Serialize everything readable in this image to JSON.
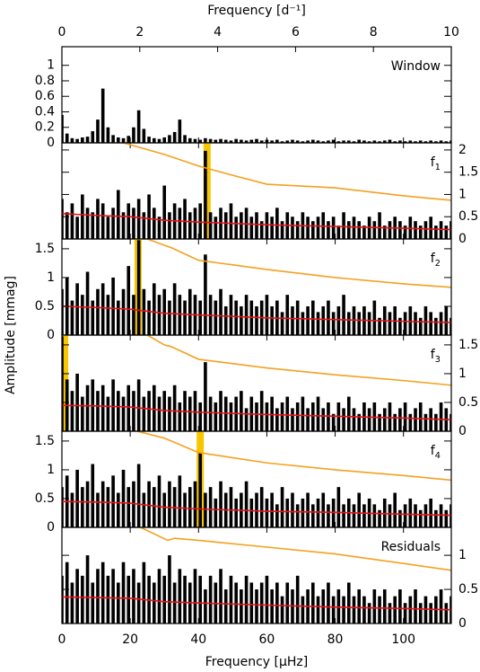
{
  "chart_data": {
    "type": "periodogram",
    "top_axis_label": "Frequency [d⁻¹]",
    "x_axis_label": "Frequency [μHz]",
    "y_axis_label": "Amplitude [mmag]",
    "xlim": [
      0,
      114
    ],
    "xticks": [
      0,
      20,
      40,
      60,
      80,
      100
    ],
    "top_xlim": [
      0,
      10
    ],
    "top_xticks": [
      0,
      2,
      4,
      6,
      8,
      10
    ],
    "x": [
      0,
      1.5,
      3,
      4.5,
      6,
      7.5,
      9,
      10.5,
      12,
      13.5,
      15,
      16.5,
      18,
      19.5,
      21,
      22.5,
      24,
      25.5,
      27,
      28.5,
      30,
      31.5,
      33,
      34.5,
      36,
      37.5,
      39,
      40.5,
      42,
      43.5,
      45,
      46.5,
      48,
      49.5,
      51,
      52.5,
      54,
      55.5,
      57,
      58.5,
      60,
      61.5,
      63,
      64.5,
      66,
      67.5,
      69,
      70.5,
      72,
      73.5,
      75,
      76.5,
      78,
      79.5,
      81,
      82.5,
      84,
      85.5,
      87,
      88.5,
      90,
      91.5,
      93,
      94.5,
      96,
      97.5,
      99,
      100.5,
      102,
      103.5,
      105,
      106.5,
      108,
      109.5,
      111,
      112.5,
      114
    ],
    "panels": [
      {
        "label": "Window",
        "ylim": [
          0,
          1.24
        ],
        "yticks": [
          0,
          0.2,
          0.4,
          0.6,
          0.8,
          1
        ],
        "ytick_side": "left",
        "color": "#000000",
        "values": [
          0.36,
          0.12,
          0.06,
          0.05,
          0.07,
          0.08,
          0.15,
          0.3,
          0.7,
          0.2,
          0.1,
          0.07,
          0.06,
          0.09,
          0.2,
          0.42,
          0.18,
          0.08,
          0.06,
          0.05,
          0.07,
          0.1,
          0.14,
          0.3,
          0.1,
          0.06,
          0.05,
          0.04,
          0.06,
          0.05,
          0.04,
          0.05,
          0.04,
          0.03,
          0.05,
          0.04,
          0.03,
          0.04,
          0.05,
          0.03,
          0.04,
          0.03,
          0.04,
          0.02,
          0.03,
          0.04,
          0.03,
          0.02,
          0.03,
          0.04,
          0.03,
          0.02,
          0.03,
          0.04,
          0.02,
          0.03,
          0.03,
          0.02,
          0.04,
          0.03,
          0.02,
          0.03,
          0.02,
          0.03,
          0.04,
          0.02,
          0.03,
          0.02,
          0.03,
          0.02,
          0.03,
          0.02,
          0.03,
          0.02,
          0.03,
          0.02,
          0.03
        ]
      },
      {
        "label": "f",
        "subscript": "1",
        "ylim": [
          0,
          2.16
        ],
        "yticks": [
          0,
          0.5,
          1,
          1.5,
          2
        ],
        "ytick_side": "right",
        "color": "#000000",
        "highlight": 42.5,
        "values": [
          0.9,
          0.6,
          0.8,
          0.5,
          1.0,
          0.7,
          0.6,
          0.9,
          0.8,
          0.5,
          0.7,
          1.1,
          0.6,
          0.8,
          0.7,
          0.9,
          0.6,
          1.0,
          0.7,
          0.5,
          1.2,
          0.6,
          0.8,
          0.7,
          0.9,
          0.6,
          0.7,
          0.8,
          1.98,
          0.6,
          0.5,
          0.7,
          0.6,
          0.8,
          0.5,
          0.6,
          0.7,
          0.5,
          0.6,
          0.4,
          0.6,
          0.5,
          0.7,
          0.4,
          0.6,
          0.5,
          0.4,
          0.6,
          0.5,
          0.4,
          0.5,
          0.6,
          0.4,
          0.5,
          0.3,
          0.6,
          0.4,
          0.5,
          0.4,
          0.3,
          0.5,
          0.4,
          0.6,
          0.3,
          0.4,
          0.5,
          0.4,
          0.3,
          0.5,
          0.4,
          0.3,
          0.4,
          0.5,
          0.3,
          0.4,
          0.3,
          0.4
        ],
        "noise": {
          "color": "#e8141c",
          "x": [
            0,
            10,
            20,
            30,
            40,
            60,
            80,
            100,
            114
          ],
          "values": [
            0.57,
            0.53,
            0.5,
            0.42,
            0.38,
            0.32,
            0.28,
            0.24,
            0.21
          ]
        },
        "threshold": {
          "color": "#f5a020",
          "x": [
            18,
            30,
            40,
            50,
            60,
            80,
            100,
            114
          ],
          "values": [
            2.16,
            1.9,
            1.64,
            1.43,
            1.23,
            1.15,
            0.97,
            0.87
          ]
        }
      },
      {
        "label": "f",
        "subscript": "2",
        "ylim": [
          0,
          1.67
        ],
        "yticks": [
          0,
          0.5,
          1,
          1.5
        ],
        "ytick_side": "left",
        "color": "#000000",
        "highlight": 22.3,
        "values": [
          0.8,
          1.0,
          0.6,
          0.9,
          0.7,
          1.1,
          0.6,
          0.8,
          0.9,
          0.7,
          1.0,
          0.6,
          0.8,
          1.2,
          0.7,
          1.65,
          0.8,
          0.6,
          0.9,
          0.7,
          0.8,
          0.6,
          0.9,
          0.7,
          0.6,
          0.8,
          0.7,
          0.6,
          1.4,
          0.7,
          0.6,
          0.8,
          0.5,
          0.7,
          0.6,
          0.5,
          0.7,
          0.6,
          0.5,
          0.6,
          0.7,
          0.5,
          0.6,
          0.4,
          0.7,
          0.5,
          0.6,
          0.4,
          0.5,
          0.6,
          0.4,
          0.5,
          0.6,
          0.4,
          0.5,
          0.7,
          0.4,
          0.5,
          0.4,
          0.5,
          0.4,
          0.6,
          0.3,
          0.5,
          0.4,
          0.5,
          0.3,
          0.4,
          0.5,
          0.4,
          0.3,
          0.5,
          0.4,
          0.3,
          0.4,
          0.5,
          0.3
        ],
        "noise": {
          "color": "#e8141c",
          "x": [
            0,
            10,
            20,
            30,
            40,
            60,
            80,
            100,
            114
          ],
          "values": [
            0.5,
            0.48,
            0.45,
            0.38,
            0.35,
            0.3,
            0.27,
            0.24,
            0.22
          ]
        },
        "threshold": {
          "color": "#f5a020",
          "x": [
            25,
            30,
            32,
            40,
            60,
            80,
            100,
            114
          ],
          "values": [
            1.67,
            1.56,
            1.52,
            1.3,
            1.14,
            1.0,
            0.89,
            0.83
          ]
        }
      },
      {
        "label": "f",
        "subscript": "3",
        "ylim": [
          0,
          1.67
        ],
        "yticks": [
          0,
          0.5,
          1,
          1.5
        ],
        "ytick_side": "right",
        "color": "#000000",
        "highlight": 0.8,
        "values": [
          1.65,
          0.9,
          0.7,
          1.0,
          0.6,
          0.8,
          0.9,
          0.7,
          0.8,
          0.6,
          0.9,
          0.7,
          0.6,
          0.8,
          0.7,
          0.9,
          0.6,
          0.7,
          0.8,
          0.6,
          0.7,
          0.6,
          0.8,
          0.5,
          0.7,
          0.6,
          0.7,
          0.5,
          1.2,
          0.6,
          0.5,
          0.7,
          0.6,
          0.5,
          0.6,
          0.7,
          0.4,
          0.6,
          0.5,
          0.7,
          0.5,
          0.6,
          0.4,
          0.5,
          0.6,
          0.4,
          0.5,
          0.6,
          0.4,
          0.5,
          0.6,
          0.4,
          0.5,
          0.3,
          0.5,
          0.4,
          0.6,
          0.4,
          0.3,
          0.5,
          0.4,
          0.5,
          0.3,
          0.4,
          0.5,
          0.3,
          0.4,
          0.5,
          0.3,
          0.4,
          0.5,
          0.3,
          0.4,
          0.3,
          0.5,
          0.4,
          0.3
        ],
        "noise": {
          "color": "#e8141c",
          "x": [
            0,
            10,
            20,
            30,
            40,
            60,
            80,
            100,
            114
          ],
          "values": [
            0.45,
            0.44,
            0.42,
            0.36,
            0.33,
            0.29,
            0.26,
            0.23,
            0.2
          ]
        },
        "threshold": {
          "color": "#f5a020",
          "x": [
            25,
            30,
            32,
            40,
            60,
            80,
            100,
            114
          ],
          "values": [
            1.67,
            1.5,
            1.47,
            1.25,
            1.1,
            0.98,
            0.88,
            0.8
          ]
        }
      },
      {
        "label": "f",
        "subscript": "4",
        "ylim": [
          0,
          1.67
        ],
        "yticks": [
          0,
          0.5,
          1,
          1.5
        ],
        "ytick_side": "left",
        "color": "#000000",
        "highlight": 40.5,
        "values": [
          0.7,
          0.9,
          0.6,
          1.0,
          0.7,
          0.8,
          1.1,
          0.6,
          0.8,
          0.7,
          0.9,
          0.6,
          1.0,
          0.7,
          0.8,
          1.1,
          0.6,
          0.8,
          0.7,
          0.9,
          0.6,
          0.8,
          0.7,
          0.9,
          0.6,
          0.7,
          0.8,
          1.3,
          0.6,
          0.7,
          0.5,
          0.8,
          0.6,
          0.7,
          0.5,
          0.6,
          0.8,
          0.5,
          0.6,
          0.7,
          0.5,
          0.6,
          0.4,
          0.7,
          0.5,
          0.6,
          0.4,
          0.5,
          0.6,
          0.4,
          0.5,
          0.6,
          0.4,
          0.5,
          0.7,
          0.4,
          0.5,
          0.4,
          0.6,
          0.4,
          0.5,
          0.4,
          0.3,
          0.5,
          0.4,
          0.6,
          0.3,
          0.4,
          0.5,
          0.4,
          0.3,
          0.4,
          0.5,
          0.3,
          0.4,
          0.3,
          0.4
        ],
        "noise": {
          "color": "#e8141c",
          "x": [
            0,
            10,
            20,
            30,
            40,
            60,
            80,
            100,
            114
          ],
          "values": [
            0.45,
            0.44,
            0.42,
            0.35,
            0.32,
            0.28,
            0.26,
            0.23,
            0.21
          ]
        },
        "threshold": {
          "color": "#f5a020",
          "x": [
            22,
            30,
            32,
            40,
            60,
            80,
            100,
            114
          ],
          "values": [
            1.67,
            1.55,
            1.5,
            1.3,
            1.12,
            1.0,
            0.9,
            0.82
          ]
        }
      },
      {
        "label": "Residuals",
        "ylim": [
          0,
          1.41
        ],
        "yticks": [
          0,
          0.5,
          1
        ],
        "ytick_side": "right",
        "color": "#000000",
        "values": [
          0.7,
          0.9,
          0.6,
          0.8,
          0.7,
          1.0,
          0.6,
          0.8,
          0.9,
          0.7,
          0.8,
          0.6,
          0.9,
          0.7,
          0.8,
          0.6,
          0.9,
          0.7,
          0.6,
          0.8,
          0.7,
          1.0,
          0.6,
          0.8,
          0.7,
          0.6,
          0.8,
          0.7,
          0.5,
          0.7,
          0.6,
          0.8,
          0.5,
          0.7,
          0.6,
          0.5,
          0.7,
          0.6,
          0.5,
          0.6,
          0.7,
          0.5,
          0.6,
          0.4,
          0.6,
          0.5,
          0.7,
          0.4,
          0.5,
          0.6,
          0.4,
          0.5,
          0.6,
          0.4,
          0.5,
          0.4,
          0.6,
          0.4,
          0.5,
          0.4,
          0.3,
          0.5,
          0.4,
          0.5,
          0.3,
          0.4,
          0.5,
          0.3,
          0.4,
          0.5,
          0.3,
          0.4,
          0.3,
          0.4,
          0.5,
          0.3,
          0.4
        ],
        "noise": {
          "color": "#e8141c",
          "x": [
            0,
            10,
            20,
            30,
            40,
            60,
            80,
            100,
            114
          ],
          "values": [
            0.39,
            0.38,
            0.37,
            0.32,
            0.3,
            0.27,
            0.24,
            0.22,
            0.2
          ]
        },
        "threshold": {
          "color": "#f5a020",
          "x": [
            23,
            31,
            33,
            40,
            60,
            80,
            100,
            114
          ],
          "values": [
            1.41,
            1.22,
            1.25,
            1.22,
            1.12,
            1.02,
            0.88,
            0.78
          ]
        }
      }
    ]
  }
}
